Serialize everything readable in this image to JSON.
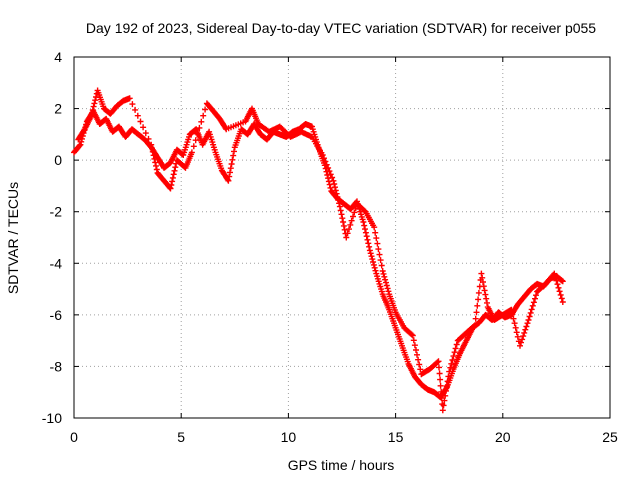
{
  "chart_data": {
    "type": "scatter",
    "title": "Day 192 of 2023, Sidereal Day-to-day VTEC variation (SDTVAR) for receiver p055",
    "xlabel": "GPS time / hours",
    "ylabel": "SDTVAR / TECUs",
    "xlim": [
      0,
      25
    ],
    "ylim": [
      -10,
      4
    ],
    "xticks": [
      "0",
      "5",
      "10",
      "15",
      "20",
      "25"
    ],
    "yticks": [
      "4",
      "2",
      "0",
      "-2",
      "-4",
      "-6",
      "-8",
      "-10"
    ],
    "grid": true,
    "marker": "plus",
    "color": "#ff0000",
    "series": [
      {
        "name": "",
        "x": [
          0.0,
          0.3,
          0.6,
          0.9,
          1.2,
          1.5,
          1.8,
          2.1,
          2.4,
          2.7,
          3.0,
          3.3,
          3.6,
          3.9,
          4.2,
          4.5,
          4.8,
          5.1,
          5.4,
          5.7,
          6.0,
          6.3,
          6.6,
          6.9,
          7.2,
          7.5,
          7.8,
          8.1,
          8.4,
          8.7,
          9.0,
          9.3,
          9.6,
          9.9,
          10.2,
          10.5,
          10.8,
          11.1,
          11.4,
          11.7,
          12.0,
          12.3,
          12.6,
          12.9,
          13.2,
          13.5,
          13.8,
          14.1,
          14.4,
          14.7,
          15.0,
          15.3,
          15.6,
          15.9,
          16.2,
          16.5,
          16.8,
          17.1,
          17.4,
          17.7,
          18.0,
          18.3,
          18.6,
          18.9,
          19.2,
          19.5,
          19.8,
          20.1,
          20.4,
          20.7,
          21.0,
          21.3,
          21.6,
          21.9,
          22.2,
          22.5,
          22.8
        ],
        "y": [
          0.3,
          0.6,
          1.5,
          1.9,
          1.4,
          1.6,
          1.1,
          1.3,
          0.9,
          1.2,
          1.0,
          0.8,
          0.5,
          0.1,
          -0.3,
          -0.1,
          0.4,
          0.2,
          1.0,
          1.2,
          0.6,
          1.1,
          0.3,
          -0.4,
          -0.8,
          0.5,
          1.2,
          1.0,
          1.4,
          1.0,
          0.8,
          1.1,
          1.0,
          0.9,
          1.1,
          1.2,
          1.4,
          1.3,
          0.5,
          -0.2,
          -1.2,
          -1.5,
          -1.7,
          -1.9,
          -1.6,
          -2.4,
          -3.5,
          -4.4,
          -5.2,
          -5.8,
          -6.5,
          -7.2,
          -7.9,
          -8.4,
          -8.7,
          -8.9,
          -9.0,
          -9.2,
          -8.8,
          -8.1,
          -7.5,
          -7.0,
          -6.5,
          -6.3,
          -6.0,
          -6.2,
          -5.9,
          -6.1,
          -6.0,
          -5.6,
          -5.3,
          -5.0,
          -4.8,
          -4.9,
          -4.6,
          -4.5,
          -4.7
        ]
      },
      {
        "name": "",
        "x": [
          0.2,
          0.5,
          0.8,
          1.1,
          1.4,
          1.7,
          2.0,
          2.3,
          2.6,
          3.6,
          3.9,
          4.2,
          4.5,
          4.8,
          5.2,
          5.5,
          6.2,
          6.5,
          6.8,
          7.1,
          8.0,
          8.3,
          8.6,
          9.1,
          9.6,
          10.1,
          10.6,
          11.1,
          11.6,
          12.1,
          12.4,
          12.7,
          13.2,
          13.6,
          14.0,
          14.4,
          14.7,
          15.0,
          15.4,
          15.8,
          16.2,
          16.6,
          17.0,
          17.2,
          17.5,
          17.9,
          18.3,
          18.7,
          19.0,
          19.3,
          19.6,
          20.0,
          20.4,
          20.8,
          21.2,
          21.6,
          22.0,
          22.4,
          22.8
        ],
        "y": [
          0.8,
          1.2,
          1.7,
          2.7,
          2.0,
          1.8,
          2.1,
          2.3,
          2.4,
          0.6,
          -0.5,
          -0.8,
          -1.1,
          0.0,
          -0.3,
          0.3,
          2.2,
          1.9,
          1.6,
          1.2,
          1.5,
          2.0,
          1.4,
          1.1,
          1.3,
          0.9,
          1.1,
          0.9,
          0.2,
          -0.8,
          -1.8,
          -3.0,
          -1.7,
          -2.0,
          -2.6,
          -4.3,
          -5.2,
          -5.9,
          -6.5,
          -6.8,
          -8.3,
          -8.1,
          -7.8,
          -9.7,
          -8.2,
          -7.0,
          -6.7,
          -6.4,
          -4.4,
          -5.7,
          -6.2,
          -6.0,
          -5.8,
          -7.2,
          -6.2,
          -5.1,
          -4.8,
          -4.4,
          -5.5
        ]
      }
    ]
  }
}
